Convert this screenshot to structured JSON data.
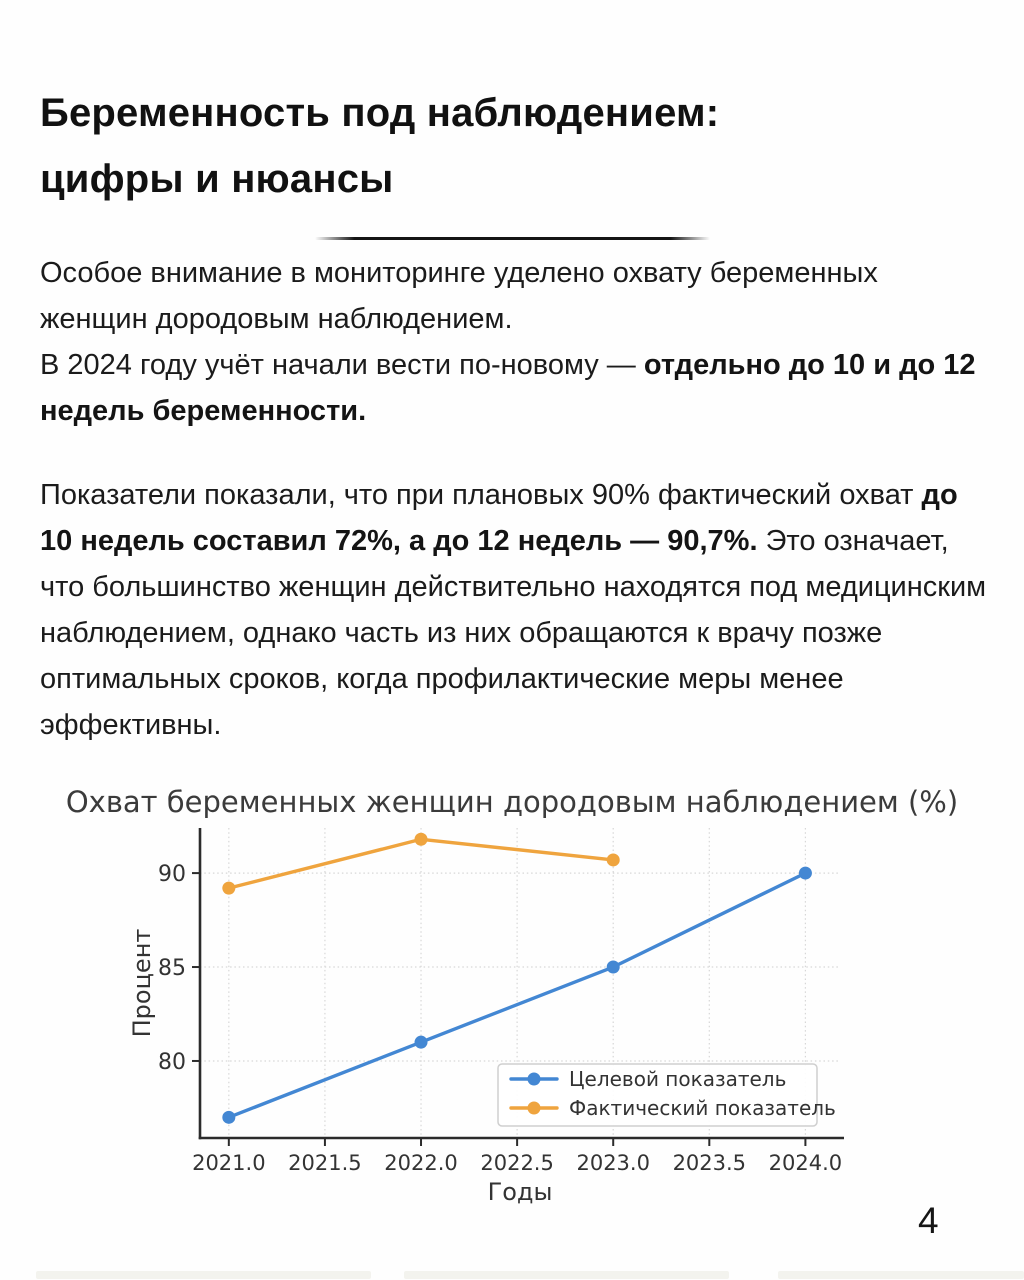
{
  "header": {
    "title_line1": "Беременность под наблюдением:",
    "title_line2": "цифры и нюансы"
  },
  "paragraphs": {
    "intro": [
      {
        "text": "Особое внимание в мониторинге уделено охвату беременных женщин дородовым наблюдением.",
        "bold": false,
        "break_after": true
      },
      {
        "text": "В 2024 году учёт начали вести по-новому — ",
        "bold": false
      },
      {
        "text": "отдельно до 10 и до 12 недель беременности.",
        "bold": true
      }
    ],
    "main": [
      {
        "text": "Показатели показали, что при плановых 90% фактический охват ",
        "bold": false
      },
      {
        "text": "до 10 недель составил 72%, а до 12 недель — 90,7%.",
        "bold": true
      },
      {
        "text": " Это означает, что большинство женщин действительно находятся под медицинским наблюдением, однако часть из них обращаются к врачу позже оптимальных сроков, когда профилактические меры менее эффективны.",
        "bold": false
      }
    ]
  },
  "chart_data": {
    "type": "line",
    "title": "Охват беременных женщин дородовым наблюдением (%)",
    "xlabel": "Годы",
    "ylabel": "Процент",
    "xlim": [
      2020.85,
      2024.18
    ],
    "ylim": [
      75.9,
      92.4
    ],
    "grid": true,
    "legend_position": "lower right",
    "x_ticks": [
      2021.0,
      2021.5,
      2022.0,
      2022.5,
      2023.0,
      2023.5,
      2024.0
    ],
    "x_tick_labels": [
      "2021.0",
      "2021.5",
      "2022.0",
      "2022.5",
      "2023.0",
      "2023.5",
      "2024.0"
    ],
    "y_ticks": [
      80,
      85,
      90
    ],
    "y_tick_labels": [
      "80",
      "85",
      "90"
    ],
    "series": [
      {
        "name": "Целевой показатель",
        "color": "#4387d3",
        "x": [
          2021,
          2022,
          2023,
          2024
        ],
        "y": [
          77,
          81,
          85,
          90
        ]
      },
      {
        "name": "Фактический показатель",
        "color": "#efa43e",
        "x": [
          2021,
          2022,
          2023
        ],
        "y": [
          89.2,
          91.8,
          90.7
        ]
      }
    ],
    "colors": {
      "spine": "#2b2b2b",
      "grid": "#d7d7d7",
      "title_text": "#3b3b3b",
      "tick_text": "#333333",
      "legend_border": "#cfcfcf"
    }
  },
  "footer": {
    "page_number": "4"
  }
}
